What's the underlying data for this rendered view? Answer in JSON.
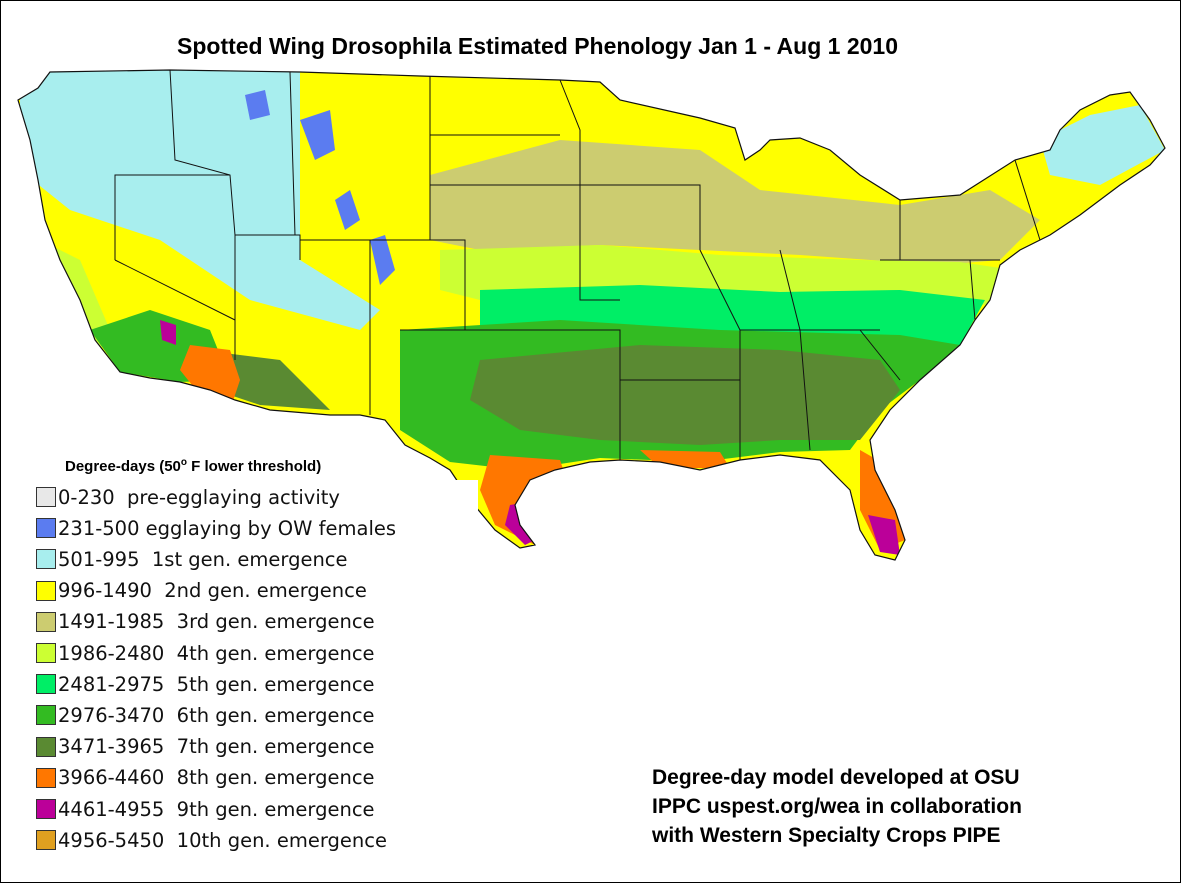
{
  "title": "Spotted Wing Drosophila Estimated Phenology Jan 1 - Aug 1 2010",
  "legend": {
    "title_main": "Degree-days (50",
    "title_sup": "o",
    "title_rest": " F lower threshold)",
    "items": [
      {
        "label": "0-230  pre-egglaying activity",
        "color": "#e8e8e8"
      },
      {
        "label": "231-500 egglaying by OW females",
        "color": "#5b7cf0"
      },
      {
        "label": "501-995  1st gen. emergence",
        "color": "#a8eeee"
      },
      {
        "label": "996-1490  2nd gen. emergence",
        "color": "#ffff00"
      },
      {
        "label": "1491-1985  3rd gen. emergence",
        "color": "#cccc70"
      },
      {
        "label": "1986-2480  4th gen. emergence",
        "color": "#ccff33"
      },
      {
        "label": "2481-2975  5th gen. emergence",
        "color": "#00ee66"
      },
      {
        "label": "2976-3470  6th gen. emergence",
        "color": "#33bb22"
      },
      {
        "label": "3471-3965  7th gen. emergence",
        "color": "#5a8a32"
      },
      {
        "label": "3966-4460  8th gen. emergence",
        "color": "#ff7700"
      },
      {
        "label": "4461-4955  9th gen. emergence",
        "color": "#bb0099"
      },
      {
        "label": "4956-5450  10th gen. emergence",
        "color": "#e0a020"
      }
    ]
  },
  "credit": {
    "line1": "Degree-day model developed at OSU",
    "line2": "IPPC uspest.org/wea in collaboration",
    "line3": "with Western Specialty Crops PIPE"
  }
}
